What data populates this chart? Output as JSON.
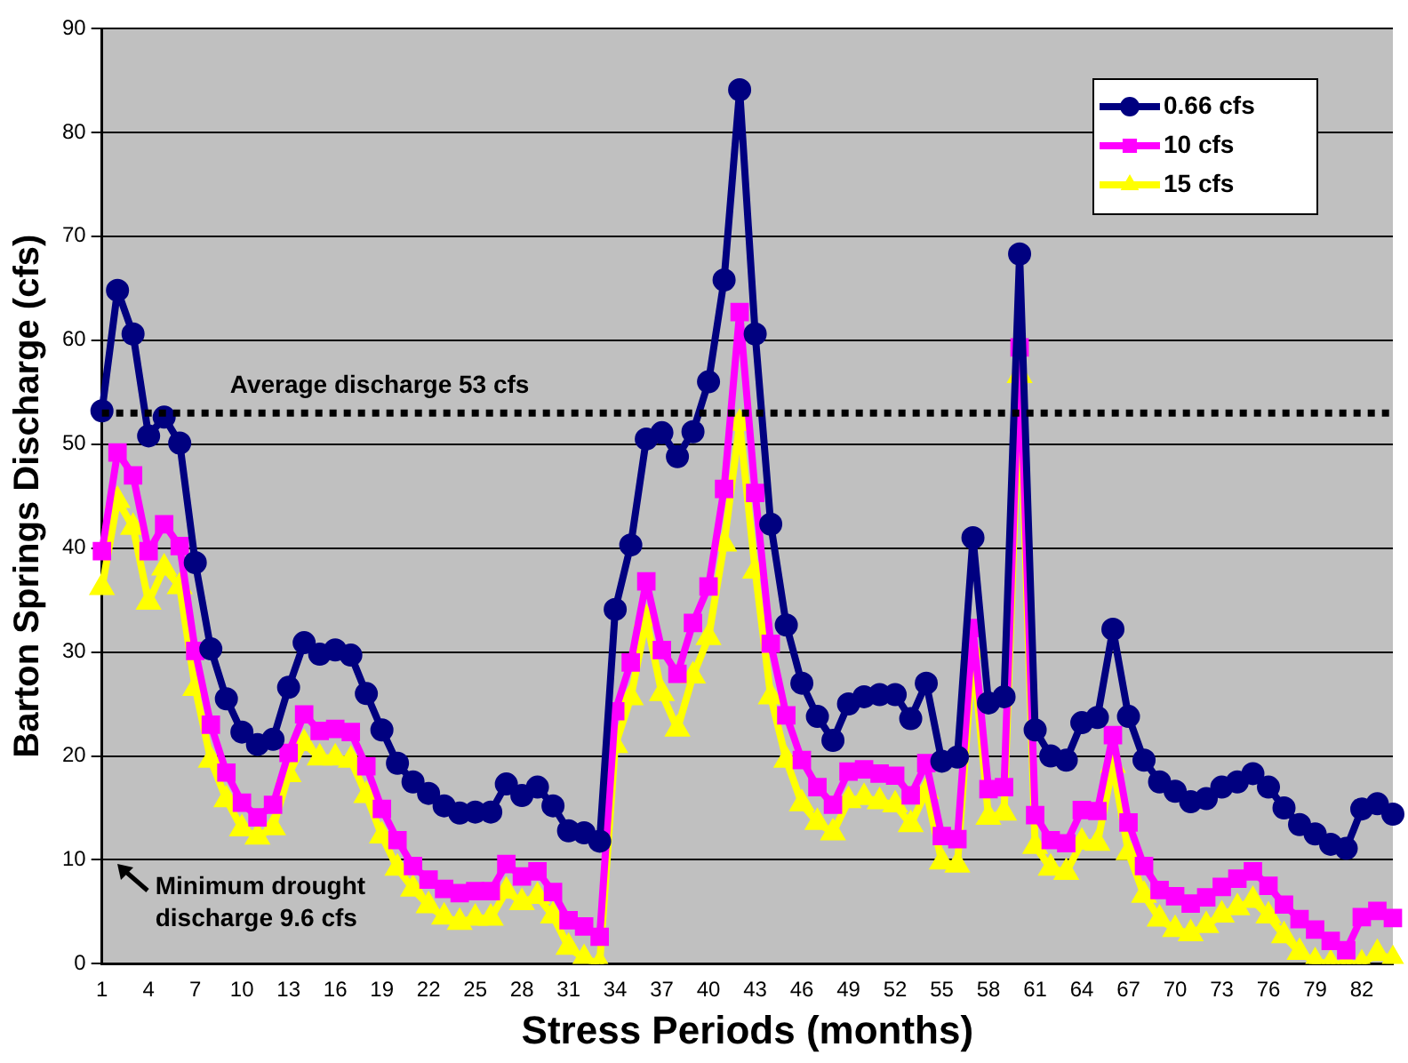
{
  "chart_data": {
    "type": "line",
    "xlabel": "Stress Periods (months)",
    "ylabel": "Barton Springs Discharge (cfs)",
    "categories": [
      "1",
      null,
      null,
      "4",
      null,
      null,
      "7",
      null,
      null,
      "10",
      null,
      null,
      "13",
      null,
      null,
      "16",
      null,
      null,
      "19",
      null,
      null,
      "22",
      null,
      null,
      "25",
      null,
      null,
      "28",
      null,
      null,
      "31",
      null,
      null,
      "34",
      null,
      null,
      "37",
      null,
      null,
      "40",
      null,
      null,
      "43",
      null,
      null,
      "46",
      null,
      null,
      "49",
      null,
      null,
      "52",
      null,
      null,
      "55",
      null,
      null,
      "58",
      null,
      null,
      "61",
      null,
      null,
      "64",
      null,
      null,
      "67",
      null,
      null,
      "70",
      null,
      null,
      "73",
      null,
      null,
      "76",
      null,
      null,
      "79",
      null,
      null,
      "82",
      null,
      null
    ],
    "series": [
      {
        "name": "0.66 cfs",
        "color": "#000080",
        "marker": "circle",
        "values": [
          53.2,
          64.8,
          60.6,
          50.8,
          52.6,
          50.1,
          38.6,
          30.3,
          25.5,
          22.3,
          21.1,
          21.6,
          26.6,
          30.9,
          29.8,
          30.2,
          29.7,
          26.0,
          22.5,
          19.3,
          17.5,
          16.4,
          15.2,
          14.5,
          14.6,
          14.6,
          17.3,
          16.2,
          17.0,
          15.2,
          12.8,
          12.6,
          11.8,
          34.1,
          40.3,
          50.5,
          51.1,
          48.8,
          51.2,
          56.0,
          65.8,
          84.1,
          60.6,
          42.3,
          32.6,
          27.0,
          23.8,
          21.5,
          25.0,
          25.7,
          25.9,
          25.9,
          23.6,
          27.0,
          19.5,
          19.9,
          41.0,
          25.1,
          25.7,
          68.3,
          22.5,
          20.0,
          19.6,
          23.2,
          23.7,
          32.2,
          23.8,
          19.6,
          17.5,
          16.6,
          15.6,
          15.9,
          17.0,
          17.5,
          18.3,
          17.0,
          15.0,
          13.4,
          12.5,
          11.5,
          11.1,
          14.9,
          15.4,
          14.4
        ]
      },
      {
        "name": "10 cfs",
        "color": "#ff00ff",
        "marker": "square",
        "values": [
          39.7,
          49.2,
          47.0,
          39.7,
          42.3,
          40.2,
          30.1,
          23.0,
          18.4,
          15.5,
          14.1,
          15.3,
          20.3,
          24.0,
          22.4,
          22.6,
          22.3,
          19.0,
          14.9,
          11.9,
          9.4,
          8.1,
          7.2,
          6.8,
          7.0,
          7.0,
          9.6,
          8.4,
          8.9,
          6.9,
          4.2,
          3.6,
          2.6,
          24.3,
          29.0,
          36.8,
          30.2,
          27.9,
          32.8,
          36.3,
          45.7,
          62.7,
          45.3,
          30.8,
          23.9,
          19.6,
          17.0,
          15.3,
          18.5,
          18.7,
          18.3,
          18.1,
          16.2,
          19.3,
          12.3,
          12.0,
          32.3,
          16.8,
          17.0,
          59.3,
          14.3,
          11.9,
          11.6,
          14.8,
          14.7,
          22.0,
          13.6,
          9.4,
          7.1,
          6.5,
          5.8,
          6.4,
          7.4,
          8.2,
          8.9,
          7.5,
          5.7,
          4.3,
          3.3,
          2.2,
          1.3,
          4.5,
          5.1,
          4.4
        ]
      },
      {
        "name": "15 cfs",
        "color": "#ffff00",
        "marker": "triangle",
        "values": [
          36.2,
          44.6,
          42.0,
          34.8,
          38.1,
          36.3,
          26.5,
          19.6,
          15.8,
          13.0,
          12.2,
          13.1,
          18.2,
          21.2,
          19.8,
          19.8,
          19.6,
          16.2,
          12.3,
          9.2,
          7.2,
          5.6,
          4.5,
          4.0,
          4.4,
          4.4,
          7.0,
          5.9,
          6.5,
          4.6,
          1.6,
          0.5,
          0.0,
          21.0,
          25.6,
          33.2,
          26.0,
          22.6,
          27.7,
          31.4,
          40.4,
          52.0,
          37.8,
          25.7,
          19.6,
          15.4,
          13.6,
          12.6,
          15.7,
          16.0,
          15.6,
          15.3,
          13.4,
          16.6,
          9.8,
          9.5,
          30.0,
          14.1,
          14.5,
          56.6,
          11.3,
          9.2,
          8.8,
          11.7,
          11.6,
          19.1,
          10.7,
          6.6,
          4.3,
          3.3,
          2.9,
          3.7,
          4.7,
          5.4,
          6.1,
          4.6,
          2.7,
          1.1,
          0.2,
          0.0,
          0.0,
          0.0,
          1.0,
          0.4
        ]
      }
    ],
    "ylim": [
      0,
      90
    ],
    "yticks": [
      0,
      10,
      20,
      30,
      40,
      50,
      60,
      70,
      80,
      90
    ],
    "grid": "y",
    "legend": "top right",
    "line_style": "solid",
    "ref_lines": [
      {
        "axis": "y",
        "value": 53,
        "label": "Average discharge 53 cfs",
        "color": "#000000",
        "line_style": "dotted"
      }
    ],
    "annotations": [
      "Minimum drought\ndischarge 9.6 cfs"
    ]
  }
}
